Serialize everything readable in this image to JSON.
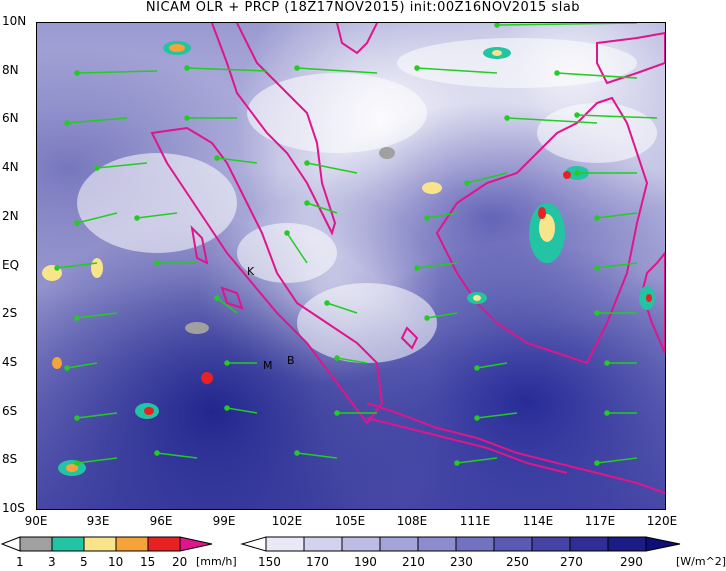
{
  "title": "NICAM OLR + PRCP (18Z17NOV2015) init:00Z16NOV2015 slab",
  "y_labels": [
    "10N",
    "8N",
    "6N",
    "4N",
    "2N",
    "EQ",
    "2S",
    "4S",
    "6S",
    "8S",
    "10S"
  ],
  "x_labels": [
    "90E",
    "93E",
    "96E",
    "99E",
    "102E",
    "105E",
    "108E",
    "111E",
    "114E",
    "117E",
    "120E"
  ],
  "markers": [
    "K",
    "M",
    "B"
  ],
  "precip_bar": {
    "labels": [
      "1",
      "3",
      "5",
      "10",
      "15",
      "20"
    ],
    "unit": "[mm/h]",
    "colors": [
      "#ffffff",
      "#a0a0a0",
      "#22c4a4",
      "#f8e48a",
      "#f6a33a",
      "#e82222",
      "#e0158c"
    ]
  },
  "olr_bar": {
    "labels": [
      "150",
      "170",
      "190",
      "210",
      "230",
      "250",
      "270",
      "290"
    ],
    "unit": "[W/m^2]",
    "colors": [
      "#ffffff",
      "#e8e8f6",
      "#d2d2ee",
      "#bcbce4",
      "#a4a4da",
      "#8c8ccf",
      "#7272c2",
      "#5a5ab4",
      "#4444a6",
      "#2e2e96",
      "#1c1c86",
      "#0e0e78"
    ]
  },
  "colors": {
    "coast": "#e0158c",
    "wind": "#22cc22"
  }
}
